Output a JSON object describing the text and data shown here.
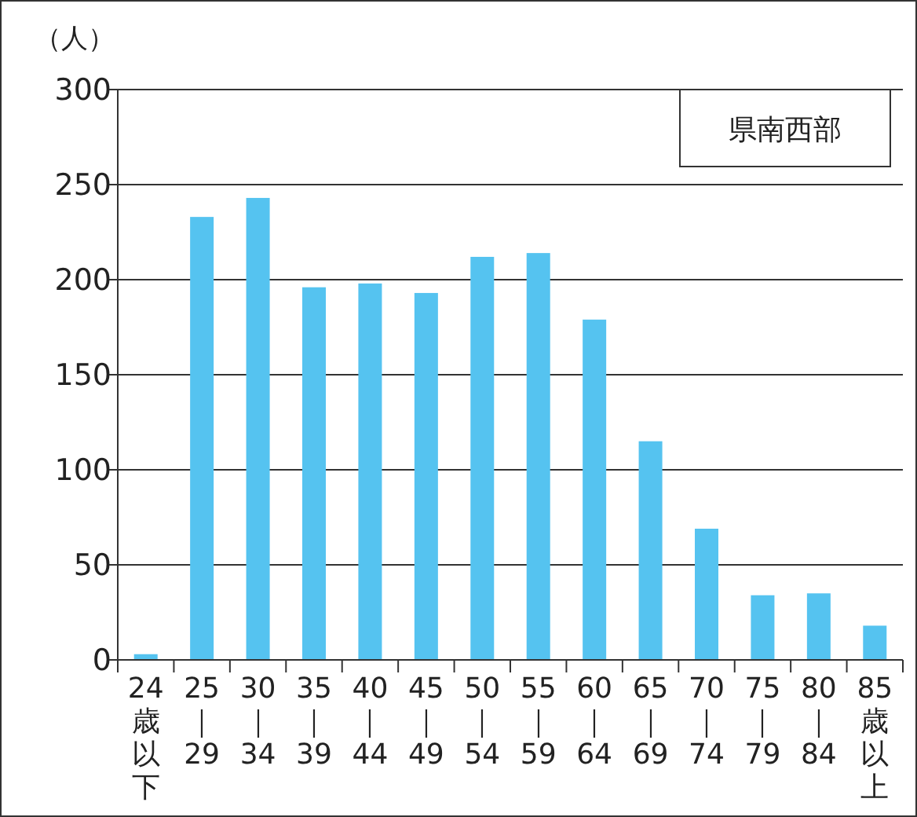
{
  "chart_data": {
    "type": "bar",
    "title": "県南西部",
    "ylabel": "（人）",
    "categories": [
      "24歳以下",
      "25｜29",
      "30｜34",
      "35｜39",
      "40｜44",
      "45｜49",
      "50｜54",
      "55｜59",
      "60｜64",
      "65｜69",
      "70｜74",
      "75｜79",
      "80｜84",
      "85歳以上"
    ],
    "values": [
      3,
      233,
      243,
      196,
      198,
      193,
      212,
      214,
      179,
      115,
      69,
      34,
      35,
      18
    ],
    "color": "#55c3f0",
    "ylim": [
      0,
      300
    ],
    "yticks": [
      0,
      50,
      100,
      150,
      200,
      250,
      300
    ],
    "grid": "y"
  }
}
